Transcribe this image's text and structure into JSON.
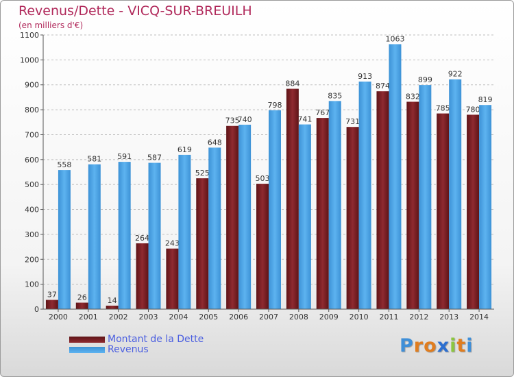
{
  "chart_data": {
    "type": "bar",
    "title": "Revenus/Dette - VICQ-SUR-BREUILH",
    "subtitle": "(en milliers d'€)",
    "categories": [
      "2000",
      "2001",
      "2002",
      "2003",
      "2004",
      "2005",
      "2006",
      "2007",
      "2008",
      "2009",
      "2010",
      "2011",
      "2012",
      "2013",
      "2014"
    ],
    "series": [
      {
        "name": "Montant de la Dette",
        "color": "#7a1f24",
        "values": [
          37,
          26,
          14,
          264,
          243,
          525,
          735,
          503,
          884,
          767,
          731,
          874,
          832,
          785,
          780
        ]
      },
      {
        "name": "Revenus",
        "color": "#4fa6e6",
        "values": [
          558,
          581,
          591,
          587,
          619,
          648,
          740,
          798,
          741,
          835,
          913,
          1063,
          899,
          922,
          819
        ]
      }
    ],
    "ylim": [
      0,
      1100
    ],
    "yticks": [
      0,
      100,
      200,
      300,
      400,
      500,
      600,
      700,
      800,
      900,
      1000,
      1100
    ],
    "grid": true,
    "legend_position": "bottom-left"
  },
  "logo": {
    "letters": [
      "P",
      "r",
      "o",
      "x",
      "i",
      "t",
      "i"
    ],
    "colors": [
      "#3f8fd8",
      "#e07d1f",
      "#e07d1f",
      "#2c6fd0",
      "#8cc63f",
      "#e07d1f",
      "#3f8fd8"
    ]
  }
}
